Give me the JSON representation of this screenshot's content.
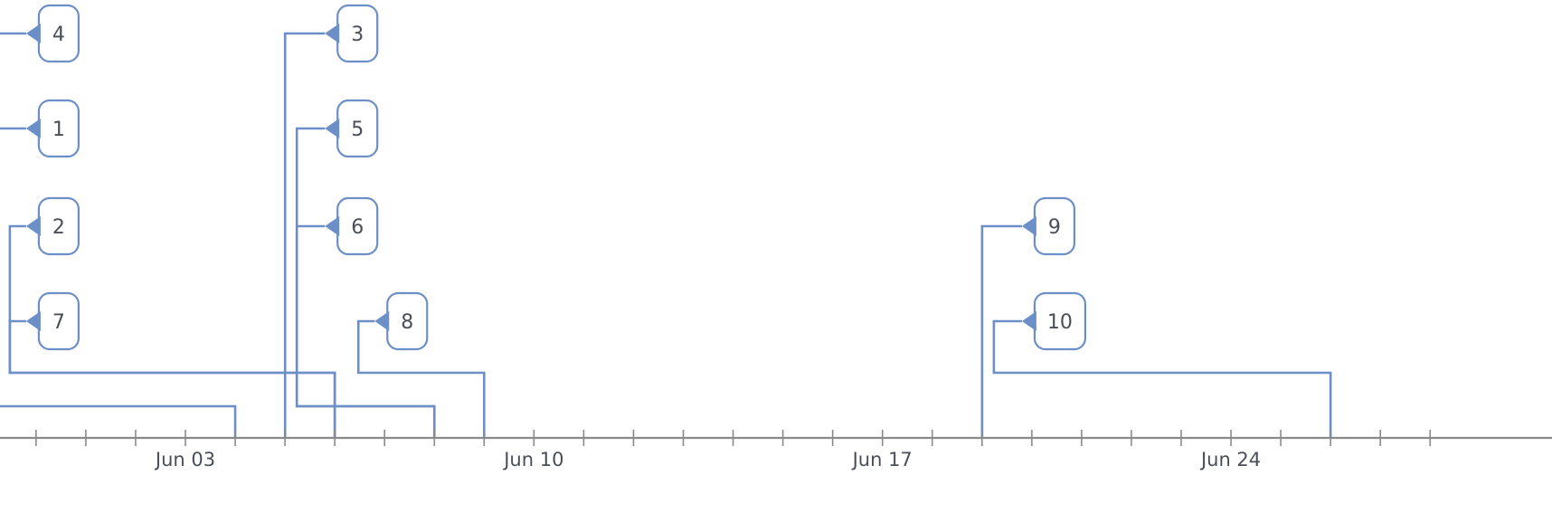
{
  "colors": {
    "accent": "#6d8fc7",
    "axis": "#8a8a8a",
    "text": "#4a4f57",
    "background": "#ffffff"
  },
  "chart_data": {
    "type": "timeline",
    "x_axis": {
      "type": "date",
      "range": [
        "2018-05-29",
        "2018-06-28"
      ],
      "ticks": [
        {
          "date": "2018-06-03",
          "label": "Jun 03"
        },
        {
          "date": "2018-06-10",
          "label": "Jun 10"
        },
        {
          "date": "2018-06-17",
          "label": "Jun 17"
        },
        {
          "date": "2018-06-24",
          "label": "Jun 24"
        }
      ],
      "minor_tick_interval_days": 1
    },
    "grid": false,
    "legend": "none",
    "events": [
      {
        "label": "4",
        "start": "2018-06-01",
        "end": "2018-06-01"
      },
      {
        "label": "1",
        "start": "2018-06-01",
        "end": "2018-06-04"
      },
      {
        "label": "2",
        "start": "2018-06-01",
        "end": "2018-06-06"
      },
      {
        "label": "7",
        "start": "2018-06-01",
        "end": "2018-06-06"
      },
      {
        "label": "3",
        "start": "2018-06-07",
        "end": "2018-06-07"
      },
      {
        "label": "5",
        "start": "2018-06-07",
        "end": "2018-06-08"
      },
      {
        "label": "6",
        "start": "2018-06-07",
        "end": "2018-06-08"
      },
      {
        "label": "8",
        "start": "2018-06-08",
        "end": "2018-06-09"
      },
      {
        "label": "9",
        "start": "2018-06-21",
        "end": "2018-06-21"
      },
      {
        "label": "10",
        "start": "2018-06-21",
        "end": "2018-06-26"
      }
    ]
  }
}
